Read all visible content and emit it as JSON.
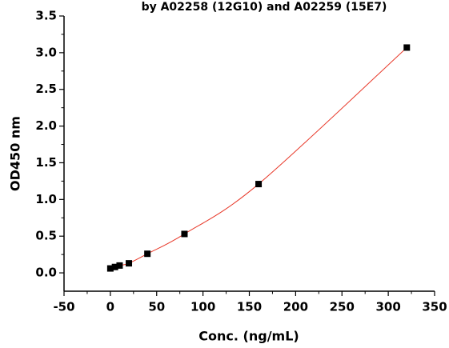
{
  "chart_data": {
    "type": "scatter",
    "title": "by A02258 (12G10) and A02259 (15E7)",
    "x_label": "Conc. (ng/mL)",
    "y_label": "OD450 nm",
    "x": [
      0,
      5,
      10,
      20,
      40,
      80,
      160,
      320
    ],
    "values": [
      0.06,
      0.08,
      0.1,
      0.13,
      0.26,
      0.53,
      1.21,
      3.07
    ],
    "color": "#000000",
    "fit_color": "#e8392a",
    "xlim": [
      -50,
      350
    ],
    "xticks": [
      -50,
      0,
      50,
      100,
      150,
      200,
      250,
      300,
      350
    ],
    "ylim": [
      -0.25,
      3.5
    ],
    "yticks": [
      {
        "value": 0,
        "label": "0.0"
      },
      {
        "value": 0.5,
        "label": "0.5"
      },
      {
        "value": 1,
        "label": "1.0"
      },
      {
        "value": 1.5,
        "label": "1.5"
      },
      {
        "value": 2,
        "label": "2.0"
      },
      {
        "value": 2.5,
        "label": "2.5"
      },
      {
        "value": 3,
        "label": "3.0"
      },
      {
        "value": 3.5,
        "label": "3.5"
      }
    ]
  }
}
